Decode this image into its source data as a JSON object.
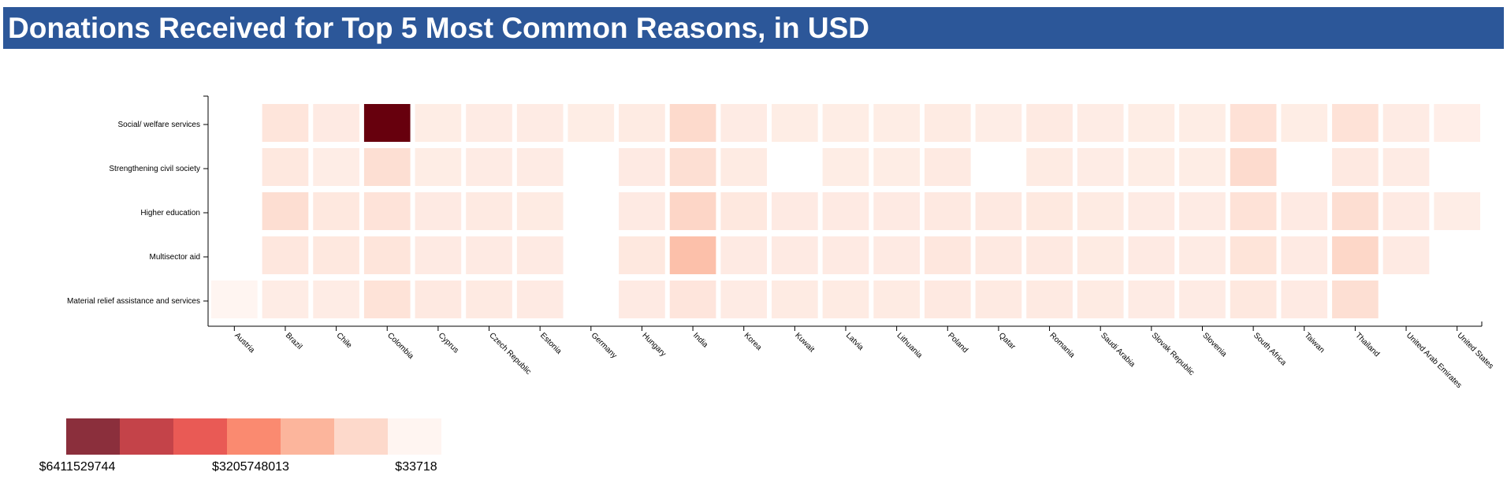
{
  "title": "Donations Received for Top 5 Most Common Reasons, in USD",
  "colors": {
    "title_bg": "#2c5799",
    "scale": [
      "#8b2f3c",
      "#c44349",
      "#e95a55",
      "#fa8a70",
      "#fcb59c",
      "#fdd9cb",
      "#fff5f1"
    ]
  },
  "chart_data": {
    "type": "heatmap",
    "title": "Donations Received for Top 5 Most Common Reasons, in USD",
    "x": [
      "Austria",
      "Brazil",
      "Chile",
      "Colombia",
      "Cyprus",
      "Czech Republic",
      "Estonia",
      "Germany",
      "Hungary",
      "India",
      "Korea",
      "Kuwait",
      "Latvia",
      "Lithuania",
      "Poland",
      "Qatar",
      "Romania",
      "Saudi Arabia",
      "Slovak Republic",
      "Slovenia",
      "South Africa",
      "Taiwan",
      "Thailand",
      "United Arab Emirates",
      "United States"
    ],
    "y": [
      "Social/ welfare services",
      "Strengthening civil society",
      "Higher education",
      "Multisector aid",
      "Material relief assistance and services"
    ],
    "values": [
      [
        null,
        280000000,
        160000000,
        6411529744,
        120000000,
        140000000,
        140000000,
        120000000,
        150000000,
        560000000,
        140000000,
        120000000,
        120000000,
        120000000,
        150000000,
        110000000,
        170000000,
        130000000,
        120000000,
        120000000,
        380000000,
        120000000,
        350000000,
        140000000,
        90000000
      ],
      [
        null,
        220000000,
        110000000,
        420000000,
        120000000,
        140000000,
        140000000,
        null,
        160000000,
        430000000,
        150000000,
        null,
        120000000,
        120000000,
        170000000,
        null,
        150000000,
        130000000,
        120000000,
        120000000,
        520000000,
        null,
        190000000,
        140000000,
        null
      ],
      [
        null,
        450000000,
        220000000,
        320000000,
        160000000,
        170000000,
        150000000,
        null,
        160000000,
        660000000,
        220000000,
        160000000,
        160000000,
        160000000,
        190000000,
        180000000,
        200000000,
        150000000,
        140000000,
        140000000,
        360000000,
        160000000,
        450000000,
        160000000,
        110000000
      ],
      [
        null,
        230000000,
        220000000,
        290000000,
        160000000,
        160000000,
        160000000,
        null,
        220000000,
        1200000000,
        160000000,
        160000000,
        160000000,
        160000000,
        230000000,
        190000000,
        190000000,
        150000000,
        160000000,
        140000000,
        310000000,
        160000000,
        640000000,
        160000000,
        null
      ],
      [
        33718,
        130000000,
        130000000,
        330000000,
        180000000,
        170000000,
        160000000,
        null,
        160000000,
        270000000,
        140000000,
        150000000,
        150000000,
        150000000,
        180000000,
        170000000,
        170000000,
        150000000,
        140000000,
        140000000,
        210000000,
        160000000,
        420000000,
        null,
        null
      ]
    ],
    "color_domain": [
      33718,
      6411529744
    ],
    "legend": {
      "labels": [
        "$6411529744",
        "$3205748013",
        "$33718"
      ],
      "position": "bottom-left"
    }
  }
}
